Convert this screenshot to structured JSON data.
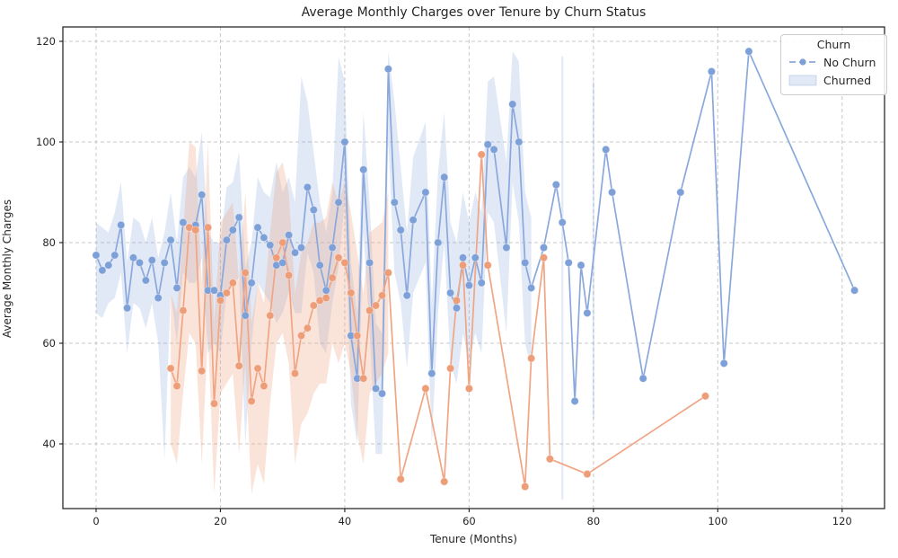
{
  "title": "Average Monthly Charges over Tenure by Churn Status",
  "x_axis": {
    "label": "Tenure (Months)",
    "ticks": [
      0,
      20,
      40,
      60,
      80,
      100,
      120
    ]
  },
  "y_axis": {
    "label": "Average Monthly Charges",
    "ticks": [
      40,
      60,
      80,
      100,
      120
    ]
  },
  "legend": {
    "title": "Churn",
    "no_churn_label": "No Churn",
    "churned_label": "Churned"
  },
  "colors": {
    "no_churn_line": "#8aa8dc",
    "no_churn_marker": "#7da0d8",
    "no_churn_band": "#89a7db",
    "churned_line": "#f0a584",
    "churned_marker": "#ed9d77",
    "churned_band": "#f0a584",
    "grid": "#c9c9c9",
    "spine": "#2b2b2b",
    "text": "#262626",
    "legend_border": "#cccccc"
  },
  "chart_data": {
    "type": "line",
    "title": "Average Monthly Charges over Tenure by Churn Status",
    "xlabel": "Tenure (Months)",
    "ylabel": "Average Monthly Charges",
    "xlim": [
      -5.3,
      126.9
    ],
    "ylim": [
      27,
      123
    ],
    "grid": true,
    "legend_position": "upper right",
    "series": [
      {
        "name": "No Churn",
        "x": [
          0,
          1,
          2,
          3,
          4,
          5,
          6,
          7,
          8,
          9,
          10,
          11,
          12,
          13,
          14,
          15,
          16,
          17,
          18,
          19,
          20,
          21,
          22,
          23,
          24,
          25,
          26,
          27,
          28,
          29,
          30,
          31,
          32,
          33,
          34,
          35,
          36,
          37,
          38,
          39,
          40,
          41,
          42,
          43,
          44,
          45,
          46,
          47,
          48,
          49,
          50,
          51,
          53,
          54,
          55,
          56,
          57,
          58,
          59,
          60,
          61,
          62,
          63,
          64,
          66,
          67,
          68,
          69,
          70,
          72,
          74,
          75,
          76,
          77,
          78,
          79,
          82,
          83,
          88,
          94,
          99,
          101,
          105,
          122
        ],
        "y": [
          77.5,
          74.5,
          75.5,
          77.5,
          83.5,
          67,
          77,
          76,
          72.5,
          76.5,
          69,
          76,
          80.5,
          71,
          84,
          83,
          83.5,
          89.5,
          70.5,
          70.5,
          69.5,
          80.5,
          82.5,
          85,
          65.5,
          72,
          83,
          81,
          79.5,
          75.5,
          76,
          81.5,
          78,
          79,
          91,
          86.5,
          75.5,
          70.5,
          79,
          88,
          100,
          61.5,
          53,
          94.5,
          76,
          51,
          50,
          114.5,
          88,
          82.5,
          69.5,
          84.5,
          90,
          54,
          80,
          93,
          70,
          67,
          77,
          71.5,
          77,
          72,
          99.5,
          98.5,
          79,
          107.5,
          100,
          76,
          71,
          79,
          91.5,
          84,
          76,
          48.5,
          75.5,
          66,
          98.5,
          90,
          53,
          90,
          114,
          56,
          118,
          70.5
        ],
        "ci_band": [
          [
            [
              0,
              66,
              84
            ],
            [
              1,
              65,
              83
            ],
            [
              2,
              68,
              82
            ],
            [
              3,
              69,
              86
            ],
            [
              4,
              74,
              92
            ],
            [
              5,
              58,
              76
            ],
            [
              6,
              68,
              85
            ],
            [
              7,
              67,
              84
            ],
            [
              8,
              63,
              80
            ],
            [
              9,
              68,
              85
            ],
            [
              10,
              60,
              77
            ],
            [
              11,
              37,
              82
            ],
            [
              12,
              70,
              90
            ],
            [
              13,
              60,
              80
            ],
            [
              14,
              74,
              93
            ],
            [
              15,
              72,
              95
            ],
            [
              16,
              72,
              93
            ],
            [
              17,
              77,
              102
            ],
            [
              18,
              58,
              82
            ],
            [
              19,
              60,
              80
            ],
            [
              20,
              58,
              80
            ],
            [
              21,
              70,
              91
            ],
            [
              22,
              72,
              92
            ],
            [
              23,
              73,
              98
            ],
            [
              24,
              40,
              75
            ],
            [
              25,
              60,
              80
            ],
            [
              26,
              72,
              93
            ],
            [
              27,
              70,
              90
            ],
            [
              28,
              68,
              89
            ],
            [
              29,
              64,
              96
            ],
            [
              30,
              66,
              90
            ],
            [
              31,
              70,
              93
            ],
            [
              32,
              66,
              88
            ],
            [
              33,
              66,
              113
            ],
            [
              34,
              78,
              108
            ],
            [
              35,
              74,
              98
            ],
            [
              36,
              60,
              88
            ],
            [
              37,
              58,
              82
            ],
            [
              38,
              68,
              90
            ],
            [
              39,
              75,
              117
            ],
            [
              40,
              88,
              112
            ],
            [
              41,
              48,
              76
            ],
            [
              42,
              40,
              66
            ],
            [
              43,
              82,
              106
            ],
            [
              44,
              62,
              88
            ],
            [
              45,
              38,
              64
            ],
            [
              46,
              38,
              62
            ],
            [
              47,
              100,
              118
            ],
            [
              48,
              74,
              108
            ],
            [
              49,
              68,
              95
            ],
            [
              50,
              55,
              82
            ],
            [
              51,
              70,
              97
            ],
            [
              53,
              76,
              104
            ],
            [
              54,
              40,
              68
            ],
            [
              55,
              66,
              94
            ],
            [
              56,
              80,
              106
            ],
            [
              57,
              56,
              84
            ],
            [
              58,
              52,
              80
            ],
            [
              59,
              62,
              90
            ],
            [
              60,
              56,
              84
            ],
            [
              61,
              62,
              90
            ],
            [
              62,
              58,
              86
            ],
            [
              63,
              86,
              112
            ],
            [
              64,
              84,
              113
            ],
            [
              66,
              62,
              96
            ],
            [
              67,
              92,
              118
            ],
            [
              68,
              84,
              116
            ],
            [
              69,
              60,
              90
            ],
            [
              70,
              55,
              85
            ]
          ],
          [
            [
              74.85,
              29,
              117
            ],
            [
              75.15,
              29,
              117
            ]
          ],
          [
            [
              79.85,
              45,
              112
            ],
            [
              80.15,
              45,
              112
            ]
          ]
        ]
      },
      {
        "name": "Churned",
        "x": [
          12,
          13,
          14,
          15,
          16,
          17,
          18,
          19,
          20,
          21,
          22,
          23,
          24,
          25,
          26,
          27,
          28,
          29,
          30,
          31,
          32,
          33,
          34,
          35,
          36,
          37,
          38,
          39,
          40,
          41,
          42,
          43,
          44,
          45,
          46,
          47,
          49,
          53,
          56,
          57,
          58,
          59,
          60,
          62,
          63,
          69,
          70,
          72,
          73,
          79,
          98
        ],
        "y": [
          55,
          51.5,
          66.5,
          83,
          82.5,
          54.5,
          83,
          48,
          68.5,
          70,
          72,
          55.5,
          74,
          48.5,
          55,
          51.5,
          65.5,
          77,
          80,
          73.5,
          54,
          61.5,
          63,
          67.5,
          68.5,
          69,
          73,
          77,
          76,
          70,
          61.5,
          53,
          66.5,
          67.5,
          69.5,
          74,
          33,
          51,
          32.5,
          55,
          68.5,
          75.5,
          51,
          97.5,
          75.5,
          31.5,
          57,
          77,
          37,
          34,
          49.5
        ],
        "ci_band": [
          [
            [
              12,
              40,
              70
            ],
            [
              13,
              36,
              66
            ],
            [
              14,
              50,
              82
            ],
            [
              15,
              62,
              100
            ],
            [
              16,
              60,
              99
            ],
            [
              17,
              36,
              72
            ],
            [
              18,
              62,
              100
            ],
            [
              19,
              30,
              64
            ],
            [
              20,
              50,
              84
            ],
            [
              21,
              52,
              86
            ],
            [
              22,
              54,
              88
            ],
            [
              23,
              38,
              72
            ],
            [
              24,
              56,
              90
            ],
            [
              25,
              30,
              64
            ],
            [
              26,
              36,
              72
            ],
            [
              27,
              32,
              68
            ],
            [
              28,
              48,
              82
            ],
            [
              29,
              60,
              94
            ],
            [
              30,
              62,
              96
            ],
            [
              31,
              56,
              90
            ],
            [
              32,
              36,
              70
            ],
            [
              33,
              44,
              78
            ],
            [
              34,
              46,
              80
            ],
            [
              35,
              50,
              84
            ],
            [
              36,
              52,
              84
            ],
            [
              37,
              52,
              85
            ],
            [
              38,
              60,
              92
            ],
            [
              39,
              56,
              88
            ],
            [
              40,
              60,
              92
            ],
            [
              41,
              54,
              86
            ],
            [
              42,
              42,
              78
            ],
            [
              43,
              36,
              70
            ],
            [
              44,
              50,
              82
            ],
            [
              45,
              52,
              83
            ],
            [
              46,
              54,
              84
            ],
            [
              47,
              58,
              90
            ]
          ]
        ]
      }
    ]
  }
}
